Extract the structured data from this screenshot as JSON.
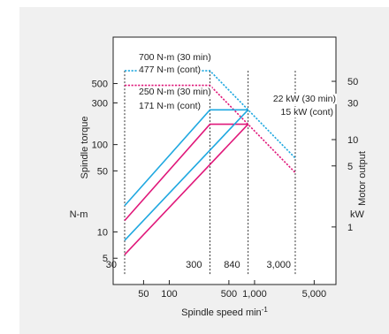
{
  "chart_data": {
    "type": "line",
    "title": "",
    "xlabel": "Spindle speed min",
    "xlabel_sup": "-1",
    "ylabel_left": "Spindle torque",
    "ylabel_left_unit": "N-m",
    "ylabel_right": "Motor output",
    "ylabel_right_unit": "kW",
    "x_scale": "log",
    "y_scale": "log",
    "xlim": [
      22,
      9000
    ],
    "ylim_left": [
      2.5,
      1700
    ],
    "x_ticks": [
      50,
      100,
      500,
      1000,
      5000
    ],
    "x_tick_labels": [
      "50",
      "100",
      "500",
      "1,000",
      "5,000"
    ],
    "y_ticks_left": [
      5,
      10,
      50,
      100,
      300,
      500
    ],
    "y_tick_labels_left": [
      "5",
      "10",
      "50",
      "100",
      "300",
      "500"
    ],
    "y_ticks_right_kw": [
      1,
      5,
      10,
      30,
      50
    ],
    "y_tick_labels_right": [
      "1",
      "5",
      "10",
      "30",
      "50"
    ],
    "speed_markers": [
      30,
      300,
      840,
      3000
    ],
    "speed_marker_labels": [
      "30",
      "300",
      "840",
      "3,000"
    ],
    "colors": {
      "cyan": "#1fa8e0",
      "magenta": "#e0187a"
    },
    "series": [
      {
        "name": "700 N-m (30 min)",
        "color": "#1fa8e0",
        "dashed": true,
        "x": [
          30,
          300,
          3000
        ],
        "y": [
          700,
          700,
          70
        ]
      },
      {
        "name": "477 N-m (cont)",
        "color": "#e0187a",
        "dashed": true,
        "x": [
          30,
          300,
          3000
        ],
        "y": [
          477,
          477,
          47.7
        ]
      },
      {
        "name": "250 N-m (30 min)",
        "color": "#1fa8e0",
        "dashed": false,
        "x": [
          30,
          840
        ],
        "y": [
          250,
          250
        ]
      },
      {
        "name": "171 N-m (cont)",
        "color": "#e0187a",
        "dashed": false,
        "x": [
          30,
          840
        ],
        "y": [
          171,
          171
        ]
      },
      {
        "name": "22 kW (30 min)",
        "color": "#1fa8e0",
        "dashed": false,
        "x": [
          30,
          300,
          840
        ],
        "y": [
          22,
          22,
          22
        ],
        "style": "power"
      },
      {
        "name": "15 kW (cont)",
        "color": "#e0187a",
        "dashed": false,
        "x": [
          30,
          300,
          840
        ],
        "y": [
          15,
          15,
          15
        ],
        "style": "power"
      }
    ]
  }
}
